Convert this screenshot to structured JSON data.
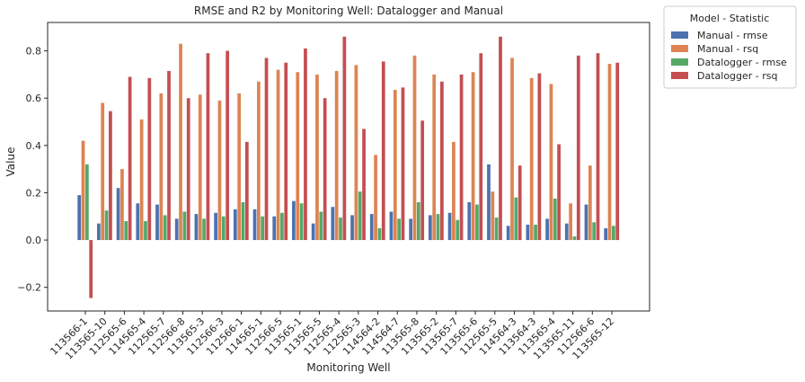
{
  "chart_data": {
    "type": "bar",
    "title": "RMSE and R2 by Monitoring Well: Datalogger and Manual",
    "xlabel": "Monitoring Well",
    "ylabel": "Value",
    "ylim": [
      -0.3,
      0.92
    ],
    "yticks": [
      -0.2,
      0.0,
      0.2,
      0.4,
      0.6,
      0.8
    ],
    "yticks_labels": [
      "−0.2",
      "0.0",
      "0.2",
      "0.4",
      "0.6",
      "0.8"
    ],
    "grid": false,
    "legend": {
      "title": "Model - Statistic",
      "placement": "outside-top-right"
    },
    "categories": [
      "113566-1",
      "113565-10",
      "112565-6",
      "114565-4",
      "112565-7",
      "112566-8",
      "113565-3",
      "112566-3",
      "112566-1",
      "114565-1",
      "112566-5",
      "113565-1",
      "113565-5",
      "112565-4",
      "112565-3",
      "114564-2",
      "114564-7",
      "113565-8",
      "113565-2",
      "113565-7",
      "113565-6",
      "112565-5",
      "114564-3",
      "113564-3",
      "113565-4",
      "113565-11",
      "112566-6",
      "113565-12"
    ],
    "series": [
      {
        "name": "Manual - rmse",
        "color": "#4c72b0",
        "values": [
          0.19,
          0.07,
          0.22,
          0.155,
          0.15,
          0.09,
          0.11,
          0.115,
          0.13,
          0.13,
          0.1,
          0.165,
          0.07,
          0.14,
          0.105,
          0.11,
          0.12,
          0.09,
          0.105,
          0.115,
          0.16,
          0.32,
          0.06,
          0.065,
          0.09,
          0.07,
          0.15,
          0.05
        ]
      },
      {
        "name": "Manual - rsq",
        "color": "#dd8452",
        "values": [
          0.42,
          0.58,
          0.3,
          0.51,
          0.62,
          0.83,
          0.615,
          0.59,
          0.62,
          0.67,
          0.72,
          0.71,
          0.7,
          0.715,
          0.74,
          0.36,
          0.635,
          0.78,
          0.7,
          0.415,
          0.71,
          0.205,
          0.77,
          0.685,
          0.66,
          0.155,
          0.315,
          0.745
        ]
      },
      {
        "name": "Datalogger - rmse",
        "color": "#55a868",
        "values": [
          0.32,
          0.125,
          0.08,
          0.08,
          0.105,
          0.12,
          0.09,
          0.1,
          0.16,
          0.1,
          0.115,
          0.155,
          0.12,
          0.095,
          0.205,
          0.05,
          0.09,
          0.16,
          0.11,
          0.085,
          0.15,
          0.095,
          0.18,
          0.065,
          0.175,
          0.015,
          0.075,
          0.06
        ]
      },
      {
        "name": "Datalogger - rsq",
        "color": "#c44e52",
        "values": [
          -0.245,
          0.545,
          0.69,
          0.685,
          0.715,
          0.6,
          0.79,
          0.8,
          0.415,
          0.77,
          0.75,
          0.81,
          0.6,
          0.86,
          0.47,
          0.755,
          0.645,
          0.505,
          0.67,
          0.7,
          0.79,
          0.86,
          0.315,
          0.705,
          0.405,
          0.78,
          0.79,
          0.75
        ]
      }
    ]
  }
}
